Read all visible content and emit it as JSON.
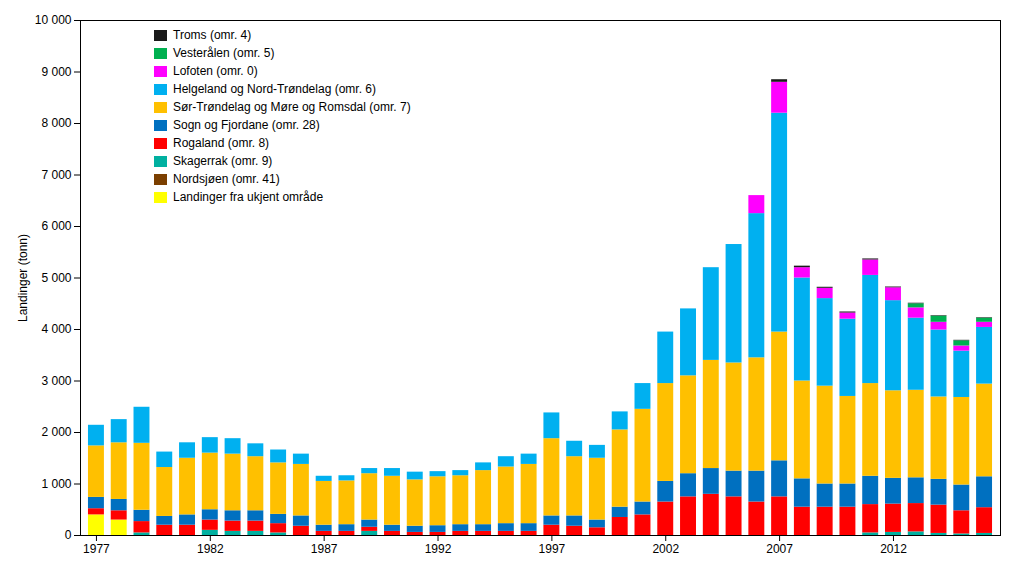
{
  "chart_data": {
    "type": "bar",
    "stacked": true,
    "x": [
      1977,
      1978,
      1979,
      1980,
      1981,
      1982,
      1983,
      1984,
      1985,
      1986,
      1987,
      1988,
      1989,
      1990,
      1991,
      1992,
      1993,
      1994,
      1995,
      1996,
      1997,
      1998,
      1999,
      2000,
      2001,
      2002,
      2003,
      2004,
      2005,
      2006,
      2007,
      2008,
      2009,
      2010,
      2011,
      2012,
      2013,
      2014,
      2015,
      2016
    ],
    "series": [
      {
        "name": "Troms (omr. 4)",
        "color": "#1a1a1a",
        "values": [
          0,
          0,
          0,
          0,
          0,
          0,
          0,
          0,
          0,
          0,
          0,
          0,
          0,
          0,
          0,
          0,
          0,
          0,
          0,
          0,
          0,
          0,
          0,
          0,
          0,
          0,
          0,
          0,
          0,
          0,
          50,
          30,
          20,
          20,
          20,
          15,
          10,
          10,
          10,
          10
        ]
      },
      {
        "name": "Vesterålen (omr. 5)",
        "color": "#00b050",
        "values": [
          0,
          0,
          0,
          0,
          0,
          0,
          0,
          0,
          0,
          0,
          0,
          0,
          0,
          0,
          0,
          0,
          0,
          0,
          0,
          0,
          0,
          0,
          0,
          0,
          0,
          0,
          0,
          0,
          0,
          0,
          0,
          0,
          0,
          0,
          0,
          0,
          80,
          120,
          100,
          80
        ]
      },
      {
        "name": "Lofoten (omr. 0)",
        "color": "#ff00ff",
        "values": [
          0,
          0,
          0,
          0,
          0,
          0,
          0,
          0,
          0,
          0,
          0,
          0,
          0,
          0,
          0,
          0,
          0,
          0,
          0,
          0,
          0,
          0,
          0,
          0,
          0,
          0,
          0,
          0,
          0,
          350,
          600,
          200,
          200,
          120,
          300,
          250,
          200,
          150,
          100,
          100
        ]
      },
      {
        "name": "Helgeland og Nord-Trøndelag (omr. 6)",
        "color": "#00b0f0",
        "values": [
          400,
          450,
          700,
          300,
          300,
          300,
          300,
          250,
          250,
          200,
          100,
          100,
          100,
          150,
          150,
          100,
          100,
          150,
          200,
          200,
          500,
          300,
          250,
          350,
          500,
          1000,
          1300,
          1800,
          2300,
          2800,
          4250,
          2000,
          1700,
          1500,
          2100,
          1750,
          1400,
          1300,
          900,
          1100
        ]
      },
      {
        "name": "Sør-Trøndelag og Møre og Romsdal (omr. 7)",
        "color": "#ffc000",
        "values": [
          1000,
          1100,
          1300,
          950,
          1100,
          1100,
          1100,
          1050,
          1000,
          1000,
          850,
          850,
          900,
          950,
          900,
          950,
          950,
          1050,
          1100,
          1150,
          1500,
          1150,
          1200,
          1500,
          1800,
          1900,
          1900,
          2100,
          2100,
          2200,
          2500,
          1900,
          1900,
          1700,
          1800,
          1700,
          1700,
          1600,
          1700,
          1800
        ]
      },
      {
        "name": "Sogn og Fjordane (omr. 28)",
        "color": "#0070c0",
        "values": [
          220,
          220,
          220,
          170,
          200,
          200,
          200,
          200,
          180,
          200,
          120,
          130,
          140,
          120,
          120,
          130,
          130,
          130,
          150,
          150,
          180,
          200,
          150,
          200,
          250,
          400,
          450,
          500,
          500,
          600,
          700,
          550,
          450,
          450,
          550,
          500,
          500,
          500,
          500,
          600
        ]
      },
      {
        "name": "Rogaland (omr. 8)",
        "color": "#ff0000",
        "values": [
          120,
          180,
          220,
          200,
          200,
          200,
          200,
          200,
          180,
          180,
          80,
          80,
          80,
          80,
          60,
          60,
          80,
          80,
          80,
          80,
          200,
          180,
          150,
          350,
          400,
          650,
          750,
          800,
          750,
          650,
          750,
          550,
          550,
          550,
          550,
          550,
          550,
          550,
          450,
          500
        ]
      },
      {
        "name": "Skagerrak (omr. 9)",
        "color": "#00b0a0",
        "values": [
          0,
          0,
          50,
          0,
          0,
          100,
          80,
          80,
          50,
          0,
          0,
          0,
          80,
          0,
          0,
          0,
          0,
          0,
          0,
          0,
          0,
          0,
          0,
          0,
          0,
          0,
          0,
          0,
          0,
          0,
          0,
          0,
          0,
          0,
          50,
          60,
          70,
          40,
          30,
          40
        ]
      },
      {
        "name": "Nordsjøen (omr. 41)",
        "color": "#7b3f00",
        "values": [
          0,
          0,
          0,
          0,
          0,
          0,
          0,
          0,
          0,
          0,
          0,
          0,
          0,
          0,
          0,
          0,
          0,
          0,
          0,
          0,
          0,
          0,
          0,
          0,
          0,
          0,
          0,
          0,
          0,
          0,
          0,
          0,
          0,
          0,
          0,
          0,
          0,
          0,
          0,
          0
        ]
      },
      {
        "name": "Landinger fra ukjent område",
        "color": "#ffff00",
        "values": [
          400,
          300,
          0,
          0,
          0,
          0,
          0,
          0,
          0,
          0,
          0,
          0,
          0,
          0,
          0,
          0,
          0,
          0,
          0,
          0,
          0,
          0,
          0,
          0,
          0,
          0,
          0,
          0,
          0,
          0,
          0,
          0,
          0,
          0,
          0,
          0,
          0,
          0,
          0,
          0
        ]
      }
    ],
    "ylabel": "Landinger (tonn)",
    "xlim": [
      1976.3,
      2016.7
    ],
    "xticks": [
      1977,
      1982,
      1987,
      1992,
      1997,
      2002,
      2007,
      2012
    ],
    "ylim": [
      0,
      10000
    ],
    "yticks": [
      0,
      {
        "value": 1000,
        "label": "1 000"
      },
      {
        "value": 2000,
        "label": "2 000"
      },
      {
        "value": 3000,
        "label": "3 000"
      },
      {
        "value": 4000,
        "label": "4 000"
      },
      {
        "value": 5000,
        "label": "5 000"
      },
      {
        "value": 6000,
        "label": "6 000"
      },
      {
        "value": 7000,
        "label": "7 000"
      },
      {
        "value": 8000,
        "label": "8 000"
      },
      {
        "value": 9000,
        "label": "9 000"
      },
      {
        "value": 10000,
        "label": "10 000"
      }
    ],
    "grid": false,
    "legend": "upper left"
  }
}
